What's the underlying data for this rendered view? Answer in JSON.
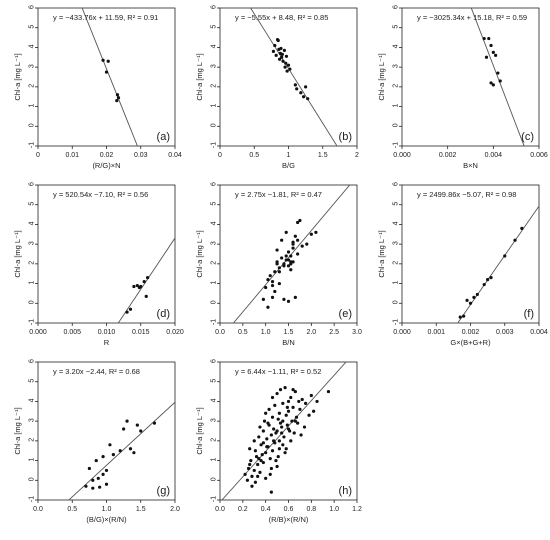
{
  "chart_data": [
    {
      "type": "scatter",
      "tag": "(a)",
      "equation": "y = −433.76x + 11.59, R² = 0.91",
      "xlabel": "(R/G)×N",
      "ylabel": "Chl-a [mg L⁻¹]",
      "xlim": [
        0,
        0.04
      ],
      "ylim": [
        -1,
        6
      ],
      "xticks": [
        "0",
        "0.01",
        "0.02",
        "0.03",
        "0.04"
      ],
      "xtick_values": [
        0,
        0.01,
        0.02,
        0.03,
        0.04
      ],
      "yticks": [
        -1,
        0,
        1,
        2,
        3,
        4,
        5,
        6
      ],
      "fit": {
        "slope": -433.76,
        "intercept": 11.59
      },
      "x": [
        0.019,
        0.0205,
        0.02,
        0.0232,
        0.0235,
        0.023
      ],
      "y": [
        3.35,
        3.3,
        2.75,
        1.6,
        1.45,
        1.3
      ]
    },
    {
      "type": "scatter",
      "tag": "(b)",
      "equation": "y = −5.55x + 8.48, R² = 0.85",
      "xlabel": "B/G",
      "ylabel": "Chl-a [mg L⁻¹]",
      "xlim": [
        0,
        2
      ],
      "ylim": [
        -1,
        6
      ],
      "xticks": [
        "0",
        "0.5",
        "1",
        "1.5",
        "2"
      ],
      "xtick_values": [
        0,
        0.5,
        1,
        1.5,
        2
      ],
      "yticks": [
        -1,
        0,
        1,
        2,
        3,
        4,
        5,
        6
      ],
      "fit": {
        "slope": -5.55,
        "intercept": 8.48
      },
      "x": [
        0.78,
        0.8,
        0.82,
        0.85,
        0.86,
        0.88,
        0.9,
        0.92,
        0.94,
        0.95,
        0.96,
        0.98,
        1.0,
        1.02,
        0.84,
        0.87,
        0.91,
        1.1,
        1.12,
        1.18,
        1.22,
        1.25,
        1.28,
        0.89,
        0.97
      ],
      "y": [
        3.8,
        4.1,
        3.6,
        4.35,
        3.9,
        3.7,
        3.5,
        3.3,
        3.85,
        3.0,
        3.2,
        2.8,
        3.1,
        2.9,
        4.4,
        3.4,
        3.65,
        2.1,
        1.9,
        1.7,
        1.5,
        2.0,
        1.4,
        3.95,
        3.55
      ]
    },
    {
      "type": "scatter",
      "tag": "(c)",
      "equation": "y = −3025.34x + 15.18, R² = 0.59",
      "xlabel": "B×N",
      "ylabel": "Chl-a [mg L⁻¹]",
      "xlim": [
        0,
        0.006
      ],
      "ylim": [
        -1,
        6
      ],
      "xticks": [
        "0.000",
        "0.002",
        "0.004",
        "0.006"
      ],
      "xtick_values": [
        0,
        0.002,
        0.004,
        0.006
      ],
      "yticks": [
        -1,
        0,
        1,
        2,
        3,
        4,
        5,
        6
      ],
      "fit": {
        "slope": -3025.34,
        "intercept": 15.18
      },
      "x": [
        0.0036,
        0.0038,
        0.0039,
        0.004,
        0.0037,
        0.0041,
        0.0042,
        0.0039,
        0.004,
        0.0043
      ],
      "y": [
        4.45,
        4.45,
        4.1,
        3.75,
        3.5,
        3.6,
        2.7,
        2.2,
        2.1,
        2.3
      ]
    },
    {
      "type": "scatter",
      "tag": "(d)",
      "equation": "y = 520.54x −7.10, R² = 0.56",
      "xlabel": "R",
      "ylabel": "Chl-a [mg L⁻¹]",
      "xlim": [
        0,
        0.02
      ],
      "ylim": [
        -1,
        6
      ],
      "xticks": [
        "0.000",
        "0.005",
        "0.010",
        "0.015",
        "0.020"
      ],
      "xtick_values": [
        0,
        0.005,
        0.01,
        0.015,
        0.02
      ],
      "yticks": [
        -1,
        0,
        1,
        2,
        3,
        4,
        5,
        6
      ],
      "fit": {
        "slope": 520.54,
        "intercept": -7.1
      },
      "x": [
        0.013,
        0.0135,
        0.014,
        0.0145,
        0.015,
        0.0155,
        0.016,
        0.0158,
        0.0148
      ],
      "y": [
        -0.45,
        -0.3,
        0.85,
        0.9,
        0.85,
        1.1,
        1.3,
        0.35,
        0.8
      ]
    },
    {
      "type": "scatter",
      "tag": "(e)",
      "equation": "y = 2.75x −1.81, R² = 0.47",
      "xlabel": "B/N",
      "ylabel": "Chl-a [mg L⁻¹]",
      "xlim": [
        0,
        3
      ],
      "ylim": [
        -1,
        6
      ],
      "xticks": [
        "0.0",
        "0.5",
        "1.0",
        "1.5",
        "2.0",
        "2.5",
        "3.0"
      ],
      "xtick_values": [
        0,
        0.5,
        1.0,
        1.5,
        2.0,
        2.5,
        3.0
      ],
      "yticks": [
        -1,
        0,
        1,
        2,
        3,
        4,
        5,
        6
      ],
      "fit": {
        "slope": 2.75,
        "intercept": -1.81
      },
      "x": [
        0.95,
        1.0,
        1.05,
        1.1,
        1.15,
        1.2,
        1.25,
        1.3,
        1.35,
        1.4,
        1.45,
        1.5,
        1.55,
        1.6,
        1.65,
        1.7,
        1.75,
        1.8,
        1.2,
        1.3,
        1.4,
        1.5,
        1.55,
        1.6,
        1.45,
        1.35,
        1.25,
        1.15,
        1.5,
        1.65,
        1.55,
        1.7,
        1.9,
        2.0,
        2.1,
        1.6,
        1.5,
        1.4,
        1.3,
        1.45,
        1.55,
        1.05,
        1.15,
        1.25,
        1.6,
        1.7
      ],
      "y": [
        0.2,
        0.8,
        1.2,
        1.4,
        0.3,
        1.6,
        2.0,
        1.8,
        2.3,
        1.9,
        2.4,
        2.6,
        2.1,
        3.0,
        3.4,
        4.1,
        4.2,
        2.9,
        0.6,
        1.0,
        0.2,
        2.2,
        1.7,
        2.8,
        3.6,
        3.2,
        2.7,
        1.1,
        0.1,
        0.3,
        2.0,
        2.5,
        3.0,
        3.5,
        3.6,
        2.1,
        1.9,
        2.0,
        1.6,
        2.2,
        2.4,
        -0.2,
        0.9,
        2.1,
        3.1,
        3.2
      ]
    },
    {
      "type": "scatter",
      "tag": "(f)",
      "equation": "y = 2499.86x −5.07, R² = 0.98",
      "xlabel": "G×(B+G+R)",
      "ylabel": "Chl-a [mg L⁻¹]",
      "xlim": [
        0,
        0.004
      ],
      "ylim": [
        -1,
        6
      ],
      "xticks": [
        "0.000",
        "0.001",
        "0.002",
        "0.003",
        "0.004"
      ],
      "xtick_values": [
        0,
        0.001,
        0.002,
        0.003,
        0.004
      ],
      "yticks": [
        -1,
        0,
        1,
        2,
        3,
        4,
        5,
        6
      ],
      "fit": {
        "slope": 2499.86,
        "intercept": -5.07
      },
      "x": [
        0.0017,
        0.0018,
        0.0019,
        0.002,
        0.0021,
        0.0022,
        0.0024,
        0.0025,
        0.0026,
        0.003,
        0.0033,
        0.0035
      ],
      "y": [
        -0.7,
        -0.65,
        0.15,
        0.0,
        0.3,
        0.45,
        0.95,
        1.2,
        1.3,
        2.4,
        3.2,
        3.8
      ]
    },
    {
      "type": "scatter",
      "tag": "(g)",
      "equation": "y = 3.20x −2.44, R² = 0.68",
      "xlabel": "(B/G)×(R/N)",
      "ylabel": "Chl-a [mg L⁻¹]",
      "xlim": [
        0,
        2
      ],
      "ylim": [
        -1,
        6
      ],
      "xticks": [
        "0.0",
        "0.5",
        "1.0",
        "1.5",
        "2.0"
      ],
      "xtick_values": [
        0,
        0.5,
        1.0,
        1.5,
        2.0
      ],
      "yticks": [
        -1,
        0,
        1,
        2,
        3,
        4,
        5,
        6
      ],
      "fit": {
        "slope": 3.2,
        "intercept": -2.44
      },
      "x": [
        0.7,
        0.75,
        0.8,
        0.85,
        0.9,
        0.95,
        1.0,
        1.05,
        1.1,
        1.2,
        1.25,
        1.3,
        1.35,
        1.4,
        1.45,
        1.5,
        1.7,
        0.8,
        0.88,
        1.0,
        0.95
      ],
      "y": [
        -0.3,
        0.6,
        -0.4,
        1.0,
        -0.35,
        0.3,
        -0.2,
        1.8,
        1.3,
        1.5,
        2.6,
        3.0,
        1.6,
        1.4,
        2.8,
        2.5,
        2.9,
        0.0,
        0.1,
        0.5,
        1.2
      ]
    },
    {
      "type": "scatter",
      "tag": "(h)",
      "equation": "y = 6.44x −1.11, R² = 0.52",
      "xlabel": "(R/B)×(R/N)",
      "ylabel": "Chl-a [mg L⁻¹]",
      "xlim": [
        0,
        1.2
      ],
      "ylim": [
        -1,
        6
      ],
      "xticks": [
        "0.0",
        "0.2",
        "0.4",
        "0.6",
        "0.8",
        "1.0",
        "1.2"
      ],
      "xtick_values": [
        0,
        0.2,
        0.4,
        0.6,
        0.8,
        1.0,
        1.2
      ],
      "yticks": [
        -1,
        0,
        1,
        2,
        3,
        4,
        5,
        6
      ],
      "fit": {
        "slope": 6.44,
        "intercept": -1.11
      },
      "x": [
        0.22,
        0.24,
        0.25,
        0.26,
        0.27,
        0.28,
        0.3,
        0.3,
        0.31,
        0.32,
        0.33,
        0.34,
        0.35,
        0.35,
        0.36,
        0.37,
        0.38,
        0.38,
        0.39,
        0.4,
        0.4,
        0.41,
        0.42,
        0.42,
        0.43,
        0.44,
        0.45,
        0.45,
        0.46,
        0.46,
        0.47,
        0.48,
        0.48,
        0.49,
        0.5,
        0.5,
        0.51,
        0.52,
        0.52,
        0.53,
        0.54,
        0.55,
        0.55,
        0.56,
        0.57,
        0.58,
        0.58,
        0.59,
        0.6,
        0.6,
        0.61,
        0.62,
        0.63,
        0.64,
        0.65,
        0.66,
        0.67,
        0.68,
        0.7,
        0.72,
        0.74,
        0.75,
        0.78,
        0.8,
        0.82,
        0.85,
        0.95,
        0.28,
        0.33,
        0.36,
        0.41,
        0.44,
        0.47,
        0.51,
        0.54,
        0.57,
        0.62,
        0.66,
        0.71,
        0.38,
        0.43,
        0.49,
        0.53,
        0.59,
        0.64,
        0.69,
        0.26,
        0.31,
        0.34,
        0.45,
        0.5,
        0.55,
        0.6,
        0.4,
        0.46,
        0.52
      ],
      "y": [
        0.3,
        0.0,
        0.6,
        1.6,
        1.0,
        0.2,
        0.5,
        2.0,
        1.5,
        1.2,
        0.8,
        2.2,
        0.4,
        2.7,
        1.8,
        1.3,
        0.9,
        2.5,
        3.0,
        0.1,
        1.4,
        2.1,
        1.7,
        2.9,
        3.6,
        1.1,
        0.6,
        2.3,
        3.2,
        1.5,
        2.6,
        3.8,
        1.9,
        2.4,
        4.4,
        0.7,
        3.1,
        2.0,
        3.4,
        4.6,
        2.7,
        1.8,
        3.9,
        2.2,
        4.7,
        3.3,
        1.6,
        2.8,
        4.0,
        3.5,
        2.5,
        4.2,
        3.0,
        3.7,
        2.4,
        4.5,
        3.2,
        2.9,
        3.6,
        4.1,
        2.7,
        3.9,
        3.3,
        4.3,
        3.5,
        4.0,
        4.5,
        -0.3,
        0.2,
        1.0,
        1.7,
        0.3,
        2.0,
        1.2,
        2.4,
        1.4,
        2.0,
        3.0,
        2.3,
        1.9,
        2.8,
        1.0,
        2.9,
        3.7,
        4.6,
        4.0,
        0.8,
        -0.1,
        1.1,
        -0.6,
        2.5,
        3.0,
        2.6,
        3.4,
        4.2,
        1.6
      ]
    }
  ]
}
